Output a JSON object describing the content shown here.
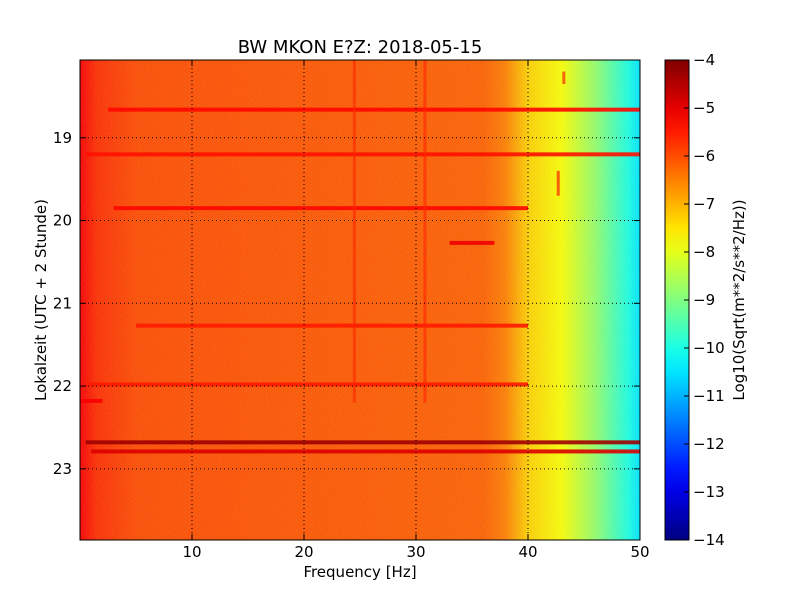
{
  "chart_data": {
    "type": "heatmap",
    "title": "BW MKON E?Z: 2018-05-15",
    "xlabel": "Frequency [Hz]",
    "ylabel": "Lokalzeit (UTC + 2 Stunde)",
    "xlim": [
      0,
      50
    ],
    "ylim": [
      18.06,
      23.86
    ],
    "y_axis_inverted": true,
    "x_ticks": [
      {
        "value": 10,
        "label": "10"
      },
      {
        "value": 20,
        "label": "20"
      },
      {
        "value": 30,
        "label": "30"
      },
      {
        "value": 40,
        "label": "40"
      },
      {
        "value": 50,
        "label": "50"
      }
    ],
    "y_ticks": [
      {
        "value": 19,
        "label": "19"
      },
      {
        "value": 20,
        "label": "20"
      },
      {
        "value": 21,
        "label": "21"
      },
      {
        "value": 22,
        "label": "22"
      },
      {
        "value": 23,
        "label": "23"
      }
    ],
    "grid": true,
    "colormap": "jet",
    "colorbar": {
      "label": "Log10(Sqrt(m**2/s**2/Hz))",
      "range": [
        -14,
        -4
      ],
      "ticks": [
        {
          "value": -4,
          "label": "−4"
        },
        {
          "value": -5,
          "label": "−5"
        },
        {
          "value": -6,
          "label": "−6"
        },
        {
          "value": -7,
          "label": "−7"
        },
        {
          "value": -8,
          "label": "−8"
        },
        {
          "value": -9,
          "label": "−9"
        },
        {
          "value": -10,
          "label": "−10"
        },
        {
          "value": -11,
          "label": "−11"
        },
        {
          "value": -12,
          "label": "−12"
        },
        {
          "value": -13,
          "label": "−13"
        },
        {
          "value": -14,
          "label": "−14"
        }
      ]
    },
    "background_spectrum": [
      {
        "freq": 0,
        "value": -5.2
      },
      {
        "freq": 1.5,
        "value": -5.7
      },
      {
        "freq": 5,
        "value": -6.0
      },
      {
        "freq": 36,
        "value": -6.2
      },
      {
        "freq": 38,
        "value": -6.5
      },
      {
        "freq": 40,
        "value": -7.3
      },
      {
        "freq": 43,
        "value": -7.8
      },
      {
        "freq": 46,
        "value": -8.8
      },
      {
        "freq": 49,
        "value": -10.0
      },
      {
        "freq": 50,
        "value": -10.5
      }
    ],
    "horizontal_bands": [
      {
        "time": 18.66,
        "f_start": 2.5,
        "f_end": 50,
        "value": -5.3
      },
      {
        "time": 19.2,
        "f_start": 0.5,
        "f_end": 50,
        "value": -5.4
      },
      {
        "time": 19.85,
        "f_start": 3,
        "f_end": 40,
        "value": -5.3
      },
      {
        "time": 20.27,
        "f_start": 33,
        "f_end": 37,
        "value": -5.1
      },
      {
        "time": 21.27,
        "f_start": 5,
        "f_end": 40,
        "value": -5.5
      },
      {
        "time": 21.98,
        "f_start": 0.5,
        "f_end": 40,
        "value": -5.5
      },
      {
        "time": 22.18,
        "f_start": 0,
        "f_end": 2,
        "value": -5.2
      },
      {
        "time": 22.68,
        "f_start": 0.5,
        "f_end": 50,
        "value": -4.3
      },
      {
        "time": 22.79,
        "f_start": 1,
        "f_end": 50,
        "value": -4.9
      }
    ],
    "vertical_lines": [
      {
        "freq": 24.5,
        "t_start": 18.06,
        "t_end": 22.2,
        "value": -5.6
      },
      {
        "freq": 30.8,
        "t_start": 18.06,
        "t_end": 22.2,
        "value": -5.6
      },
      {
        "freq": 42.7,
        "t_start": 19.4,
        "t_end": 19.7,
        "value": -5.2
      },
      {
        "freq": 43.2,
        "t_start": 18.2,
        "t_end": 18.35,
        "value": -5.3
      }
    ]
  }
}
